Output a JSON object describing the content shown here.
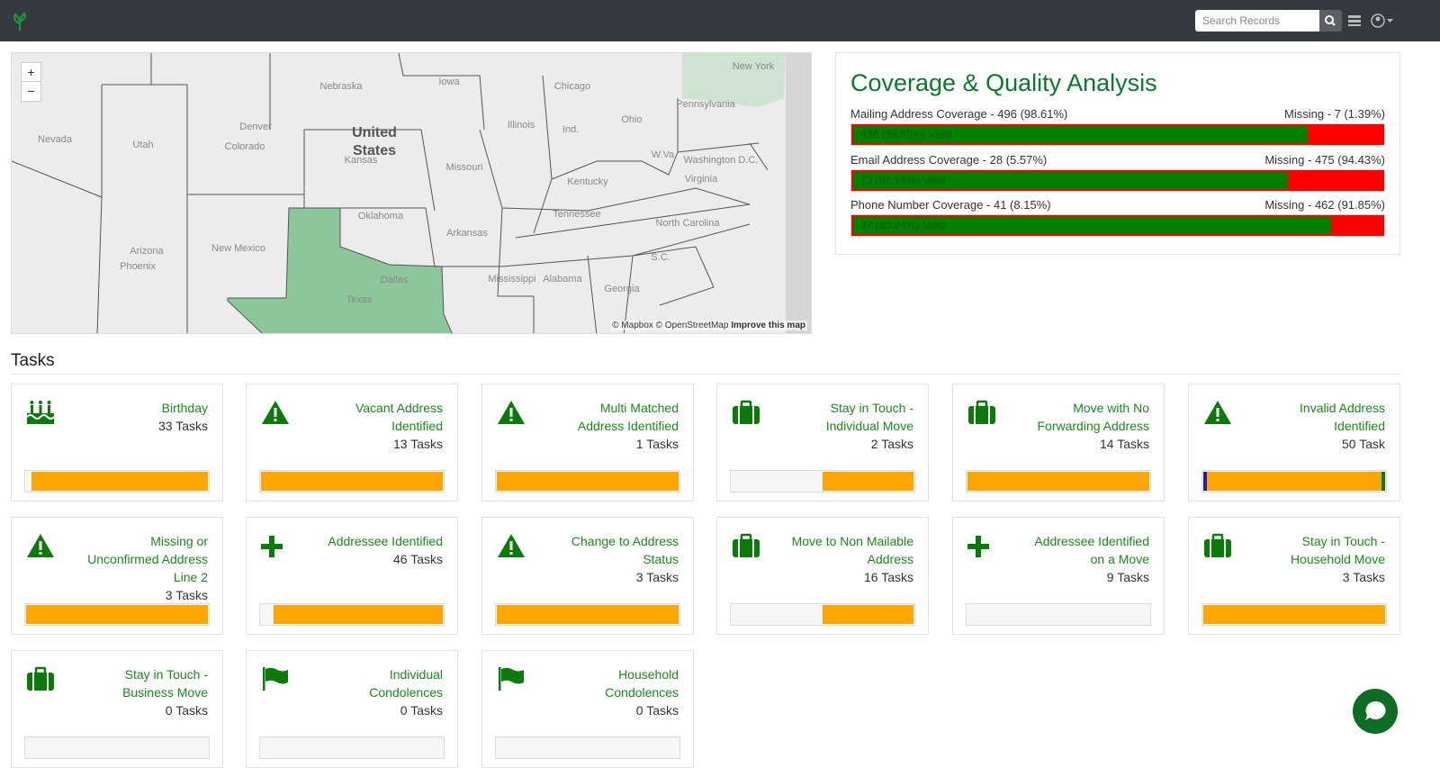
{
  "navbar": {
    "search_placeholder": "Search Records"
  },
  "map": {
    "zoom_in": "+",
    "zoom_out": "−",
    "labels": [
      "Nebraska",
      "Iowa",
      "Denver",
      "Colorado",
      "United",
      "States",
      "Kansas",
      "Missouri",
      "Illinois",
      "Ind.",
      "Ohio",
      "Pennsylvania",
      "New York",
      "Nevada",
      "Utah",
      "Oklahoma",
      "Arkansas",
      "Tennessee",
      "Kentucky",
      "Virginia",
      "North Carolina",
      "Arizona",
      "New Mexico",
      "Phoenix",
      "Dallas",
      "Texas",
      "Mississippi",
      "Alabama",
      "Georgia",
      "S.C.",
      "Washington D.C.",
      "W.Va.",
      "Chicago"
    ],
    "attribution": "© Mapbox © OpenStreetMap",
    "improve": "Improve this map"
  },
  "coverage": {
    "title": "Coverage & Quality Analysis",
    "rows": [
      {
        "label": "Mailing Address Coverage - 496 (98.61%)",
        "missing": "Missing - 7 (1.39%)",
        "bar_label": "426 (85.89%) Valid",
        "valid_percent": 85.89
      },
      {
        "label": "Email Address Coverage - 28 (5.57%)",
        "missing": "Missing - 475 (94.43%)",
        "bar_label": "23 (82.14%) Valid",
        "valid_percent": 82.14
      },
      {
        "label": "Phone Number Coverage - 41 (8.15%)",
        "missing": "Missing - 462 (91.85%)",
        "bar_label": "37 (90.24%) Valid",
        "valid_percent": 90.24
      }
    ]
  },
  "tasks": {
    "title": "Tasks",
    "items": [
      {
        "name": "Birthday",
        "count": "33 Tasks",
        "progress": [
          {
            "color": "#ffa500",
            "value": 97
          }
        ]
      },
      {
        "name": "Vacant Address Identified",
        "count": "13 Tasks",
        "progress": [
          {
            "color": "#ffa500",
            "value": 100
          }
        ]
      },
      {
        "name": "Multi Matched Address Identified",
        "count": "1 Tasks",
        "progress": [
          {
            "color": "#ffa500",
            "value": 100
          }
        ]
      },
      {
        "name": "Stay in Touch - Individual Move",
        "count": "2 Tasks",
        "progress": [
          {
            "color": "#ffa500",
            "value": 50
          }
        ]
      },
      {
        "name": "Move with No Forwarding Address",
        "count": "14 Tasks",
        "progress": [
          {
            "color": "#ffa500",
            "value": 100
          }
        ]
      },
      {
        "name": "Invalid Address Identified",
        "count": "50 Task",
        "progress": [
          {
            "color": "#1a1acc",
            "value": 2
          },
          {
            "color": "#ffa500",
            "value": 96
          },
          {
            "color": "#0a7a0a",
            "value": 2
          }
        ]
      },
      {
        "name": "Missing or Unconfirmed Address Line 2",
        "count": "3 Tasks",
        "progress": [
          {
            "color": "#ffa500",
            "value": 100
          }
        ]
      },
      {
        "name": "Addressee Identified",
        "count": "46 Tasks",
        "progress": [
          {
            "color": "#ffa500",
            "value": 93
          }
        ]
      },
      {
        "name": "Change to Address Status",
        "count": "3 Tasks",
        "progress": [
          {
            "color": "#ffa500",
            "value": 100
          }
        ]
      },
      {
        "name": "Move to Non Mailable Address",
        "count": "16 Tasks",
        "progress": [
          {
            "color": "#ffa500",
            "value": 50
          }
        ]
      },
      {
        "name": "Addressee Identified on a Move",
        "count": "9 Tasks",
        "progress": []
      },
      {
        "name": "Stay in Touch - Household Move",
        "count": "3 Tasks",
        "progress": [
          {
            "color": "#ffa500",
            "value": 100
          }
        ]
      },
      {
        "name": "Stay in Touch - Business Move",
        "count": "0 Tasks",
        "progress": []
      },
      {
        "name": "Individual Condolences",
        "count": "0 Tasks",
        "progress": []
      },
      {
        "name": "Household Condolences",
        "count": "0 Tasks",
        "progress": []
      }
    ]
  }
}
